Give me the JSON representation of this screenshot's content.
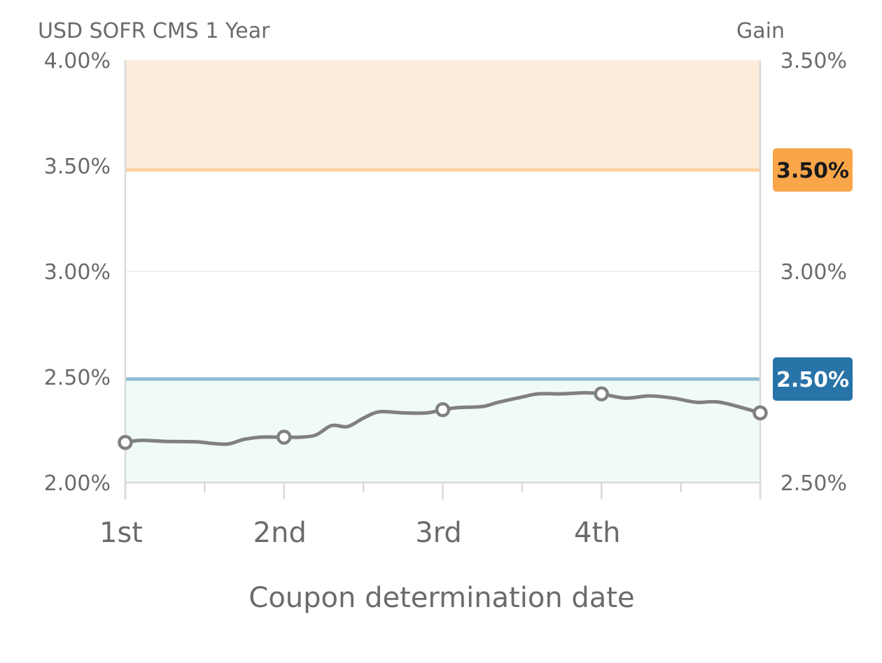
{
  "chart_data": {
    "type": "line",
    "left_axis_title": "USD SOFR CMS 1 Year",
    "right_axis_title": "Gain",
    "xlabel": "Coupon determination date",
    "x_ticks": [
      "1st",
      "2nd",
      "3rd",
      "4th"
    ],
    "ylim": [
      2.0,
      4.0
    ],
    "y_ticks": [
      {
        "value": 4.0,
        "left": "4.00%",
        "right": "3.50%"
      },
      {
        "value": 3.5,
        "left": "3.50%",
        "right": ""
      },
      {
        "value": 3.0,
        "left": "3.00%",
        "right": "3.00%"
      },
      {
        "value": 2.5,
        "left": "2.50%",
        "right": ""
      },
      {
        "value": 2.0,
        "left": "2.00%",
        "right": "2.50%"
      }
    ],
    "upper_threshold": {
      "value": 3.48,
      "badge": "3.50%",
      "color": "#f9a54a",
      "line_color": "#fbd0a0",
      "fill_color": "#fdecdc"
    },
    "lower_threshold": {
      "value": 2.49,
      "badge": "2.50%",
      "color": "#2873a8",
      "line_color": "#8fbdd3",
      "fill_color": "#f0faf8"
    },
    "grid": true,
    "series": [
      {
        "color": "#808080",
        "x": [
          1.0,
          1.1,
          1.25,
          1.45,
          1.55,
          1.65,
          1.75,
          1.85,
          2.0,
          2.1,
          2.2,
          2.3,
          2.4,
          2.5,
          2.6,
          2.75,
          2.9,
          3.0,
          3.1,
          3.25,
          3.35,
          3.5,
          3.6,
          3.75,
          3.9,
          4.0,
          4.15,
          4.3,
          4.45,
          4.6,
          4.75,
          5.0
        ],
        "y": [
          2.19,
          2.2,
          2.195,
          2.193,
          2.185,
          2.183,
          2.205,
          2.215,
          2.215,
          2.215,
          2.225,
          2.27,
          2.265,
          2.305,
          2.335,
          2.33,
          2.33,
          2.345,
          2.355,
          2.36,
          2.38,
          2.405,
          2.42,
          2.42,
          2.425,
          2.42,
          2.4,
          2.41,
          2.4,
          2.38,
          2.38,
          2.33
        ],
        "markers_at": [
          1.0,
          2.0,
          3.0,
          4.0,
          5.0
        ]
      }
    ]
  }
}
